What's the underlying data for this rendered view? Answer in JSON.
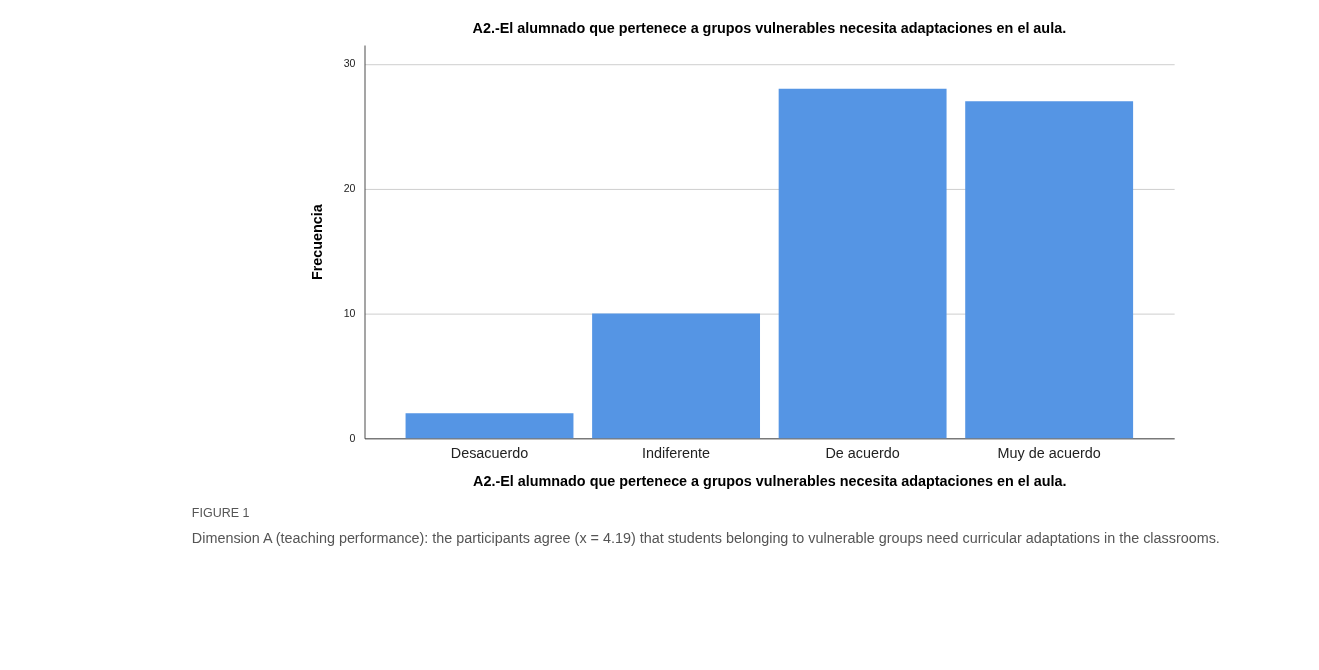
{
  "chart_data": {
    "type": "bar",
    "title": "A2.-El alumnado que pertenece a grupos vulnerables necesita adaptaciones en el aula.",
    "xlabel": "A2.-El alumnado que pertenece a grupos vulnerables necesita adaptaciones en el aula.",
    "ylabel": "Frecuencia",
    "categories": [
      "Desacuerdo",
      "Indiferente",
      "De acuerdo",
      "Muy de acuerdo"
    ],
    "values": [
      2,
      10,
      28,
      27
    ],
    "color": "#5595e4",
    "ylim": [
      0,
      31.5
    ],
    "yticks": [
      0,
      10,
      20,
      30
    ],
    "grid": "y",
    "annotations": [
      "FIGURE 1",
      "Dimension A (teaching performance): the participants agree (x = 4.19) that students belonging to vulnerable groups need curricular adaptations in the classrooms."
    ]
  }
}
